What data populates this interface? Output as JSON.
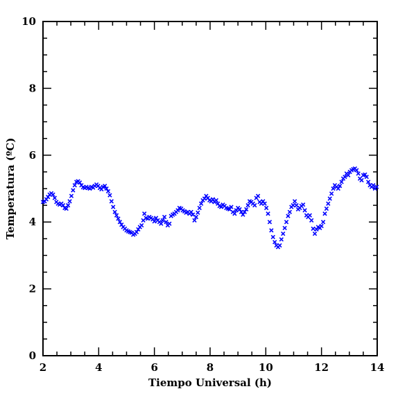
{
  "chart_data": {
    "type": "scatter",
    "xlabel": "Tiempo Universal (h)",
    "ylabel": "Temperatura (ºC)",
    "xlim": [
      2,
      14
    ],
    "ylim": [
      0,
      10
    ],
    "x_ticks": [
      2,
      4,
      6,
      8,
      10,
      12,
      14
    ],
    "y_ticks": [
      0,
      2,
      4,
      6,
      8,
      10
    ],
    "marker": "x",
    "marker_color": "#0000ff",
    "grid": false,
    "series": [
      {
        "points": [
          [
            2.0,
            4.6
          ],
          [
            2.06,
            4.62
          ],
          [
            2.12,
            4.68
          ],
          [
            2.18,
            4.75
          ],
          [
            2.24,
            4.82
          ],
          [
            2.3,
            4.86
          ],
          [
            2.36,
            4.82
          ],
          [
            2.42,
            4.72
          ],
          [
            2.48,
            4.6
          ],
          [
            2.54,
            4.55
          ],
          [
            2.6,
            4.52
          ],
          [
            2.66,
            4.55
          ],
          [
            2.72,
            4.5
          ],
          [
            2.78,
            4.42
          ],
          [
            2.84,
            4.4
          ],
          [
            2.9,
            4.5
          ],
          [
            2.96,
            4.62
          ],
          [
            3.02,
            4.78
          ],
          [
            3.08,
            4.95
          ],
          [
            3.14,
            5.1
          ],
          [
            3.2,
            5.2
          ],
          [
            3.26,
            5.22
          ],
          [
            3.32,
            5.18
          ],
          [
            3.38,
            5.1
          ],
          [
            3.44,
            5.04
          ],
          [
            3.5,
            5.02
          ],
          [
            3.56,
            5.05
          ],
          [
            3.62,
            5.02
          ],
          [
            3.68,
            5.0
          ],
          [
            3.74,
            5.05
          ],
          [
            3.8,
            5.03
          ],
          [
            3.86,
            5.08
          ],
          [
            3.92,
            5.12
          ],
          [
            3.98,
            5.08
          ],
          [
            4.04,
            5.02
          ],
          [
            4.1,
            4.98
          ],
          [
            4.16,
            5.05
          ],
          [
            4.22,
            5.08
          ],
          [
            4.28,
            5.0
          ],
          [
            4.34,
            4.92
          ],
          [
            4.4,
            4.8
          ],
          [
            4.46,
            4.62
          ],
          [
            4.52,
            4.45
          ],
          [
            4.58,
            4.3
          ],
          [
            4.64,
            4.2
          ],
          [
            4.7,
            4.1
          ],
          [
            4.76,
            4.0
          ],
          [
            4.82,
            3.92
          ],
          [
            4.88,
            3.85
          ],
          [
            4.94,
            3.8
          ],
          [
            5.0,
            3.75
          ],
          [
            5.06,
            3.72
          ],
          [
            5.12,
            3.7
          ],
          [
            5.18,
            3.68
          ],
          [
            5.24,
            3.62
          ],
          [
            5.3,
            3.65
          ],
          [
            5.36,
            3.7
          ],
          [
            5.42,
            3.78
          ],
          [
            5.48,
            3.85
          ],
          [
            5.54,
            3.9
          ],
          [
            5.6,
            4.05
          ],
          [
            5.64,
            4.25
          ],
          [
            5.7,
            4.12
          ],
          [
            5.76,
            4.1
          ],
          [
            5.82,
            4.15
          ],
          [
            5.88,
            4.12
          ],
          [
            5.94,
            4.08
          ],
          [
            6.0,
            4.02
          ],
          [
            6.06,
            4.12
          ],
          [
            6.12,
            4.05
          ],
          [
            6.18,
            4.0
          ],
          [
            6.24,
            3.95
          ],
          [
            6.3,
            4.05
          ],
          [
            6.36,
            4.15
          ],
          [
            6.42,
            4.0
          ],
          [
            6.48,
            3.9
          ],
          [
            6.54,
            3.95
          ],
          [
            6.6,
            4.18
          ],
          [
            6.66,
            4.22
          ],
          [
            6.72,
            4.25
          ],
          [
            6.78,
            4.3
          ],
          [
            6.84,
            4.35
          ],
          [
            6.9,
            4.42
          ],
          [
            6.96,
            4.4
          ],
          [
            7.02,
            4.35
          ],
          [
            7.08,
            4.32
          ],
          [
            7.14,
            4.28
          ],
          [
            7.2,
            4.3
          ],
          [
            7.26,
            4.25
          ],
          [
            7.32,
            4.3
          ],
          [
            7.38,
            4.22
          ],
          [
            7.44,
            4.05
          ],
          [
            7.5,
            4.15
          ],
          [
            7.56,
            4.28
          ],
          [
            7.62,
            4.42
          ],
          [
            7.68,
            4.55
          ],
          [
            7.74,
            4.65
          ],
          [
            7.8,
            4.7
          ],
          [
            7.86,
            4.78
          ],
          [
            7.92,
            4.72
          ],
          [
            7.98,
            4.65
          ],
          [
            8.04,
            4.62
          ],
          [
            8.1,
            4.68
          ],
          [
            8.16,
            4.6
          ],
          [
            8.22,
            4.65
          ],
          [
            8.28,
            4.55
          ],
          [
            8.34,
            4.48
          ],
          [
            8.4,
            4.45
          ],
          [
            8.46,
            4.52
          ],
          [
            8.52,
            4.48
          ],
          [
            8.58,
            4.42
          ],
          [
            8.64,
            4.4
          ],
          [
            8.7,
            4.38
          ],
          [
            8.76,
            4.45
          ],
          [
            8.82,
            4.3
          ],
          [
            8.88,
            4.25
          ],
          [
            8.94,
            4.35
          ],
          [
            9.0,
            4.42
          ],
          [
            9.06,
            4.38
          ],
          [
            9.12,
            4.3
          ],
          [
            9.18,
            4.22
          ],
          [
            9.24,
            4.3
          ],
          [
            9.3,
            4.38
          ],
          [
            9.36,
            4.5
          ],
          [
            9.42,
            4.62
          ],
          [
            9.48,
            4.6
          ],
          [
            9.54,
            4.55
          ],
          [
            9.6,
            4.5
          ],
          [
            9.66,
            4.72
          ],
          [
            9.72,
            4.78
          ],
          [
            9.78,
            4.6
          ],
          [
            9.84,
            4.55
          ],
          [
            9.9,
            4.62
          ],
          [
            9.96,
            4.55
          ],
          [
            10.02,
            4.42
          ],
          [
            10.08,
            4.25
          ],
          [
            10.14,
            4.0
          ],
          [
            10.2,
            3.75
          ],
          [
            10.26,
            3.55
          ],
          [
            10.32,
            3.4
          ],
          [
            10.38,
            3.3
          ],
          [
            10.44,
            3.25
          ],
          [
            10.5,
            3.3
          ],
          [
            10.56,
            3.48
          ],
          [
            10.62,
            3.65
          ],
          [
            10.68,
            3.82
          ],
          [
            10.74,
            4.0
          ],
          [
            10.8,
            4.18
          ],
          [
            10.86,
            4.3
          ],
          [
            10.92,
            4.45
          ],
          [
            10.98,
            4.5
          ],
          [
            11.04,
            4.62
          ],
          [
            11.1,
            4.5
          ],
          [
            11.16,
            4.38
          ],
          [
            11.22,
            4.42
          ],
          [
            11.28,
            4.48
          ],
          [
            11.34,
            4.52
          ],
          [
            11.4,
            4.35
          ],
          [
            11.46,
            4.2
          ],
          [
            11.52,
            4.15
          ],
          [
            11.58,
            4.2
          ],
          [
            11.64,
            4.05
          ],
          [
            11.7,
            3.8
          ],
          [
            11.76,
            3.65
          ],
          [
            11.82,
            3.78
          ],
          [
            11.88,
            3.85
          ],
          [
            11.94,
            3.82
          ],
          [
            12.0,
            3.88
          ],
          [
            12.06,
            4.0
          ],
          [
            12.12,
            4.25
          ],
          [
            12.18,
            4.4
          ],
          [
            12.24,
            4.55
          ],
          [
            12.3,
            4.7
          ],
          [
            12.36,
            4.85
          ],
          [
            12.42,
            5.0
          ],
          [
            12.48,
            5.1
          ],
          [
            12.54,
            5.05
          ],
          [
            12.6,
            5.0
          ],
          [
            12.66,
            5.08
          ],
          [
            12.72,
            5.2
          ],
          [
            12.78,
            5.3
          ],
          [
            12.84,
            5.35
          ],
          [
            12.9,
            5.45
          ],
          [
            12.96,
            5.4
          ],
          [
            13.02,
            5.5
          ],
          [
            13.08,
            5.55
          ],
          [
            13.14,
            5.58
          ],
          [
            13.2,
            5.6
          ],
          [
            13.26,
            5.55
          ],
          [
            13.32,
            5.45
          ],
          [
            13.38,
            5.3
          ],
          [
            13.44,
            5.25
          ],
          [
            13.5,
            5.4
          ],
          [
            13.56,
            5.42
          ],
          [
            13.62,
            5.35
          ],
          [
            13.68,
            5.2
          ],
          [
            13.74,
            5.1
          ],
          [
            13.8,
            5.05
          ],
          [
            13.86,
            5.1
          ],
          [
            13.92,
            5.0
          ],
          [
            13.98,
            5.05
          ]
        ]
      }
    ]
  }
}
